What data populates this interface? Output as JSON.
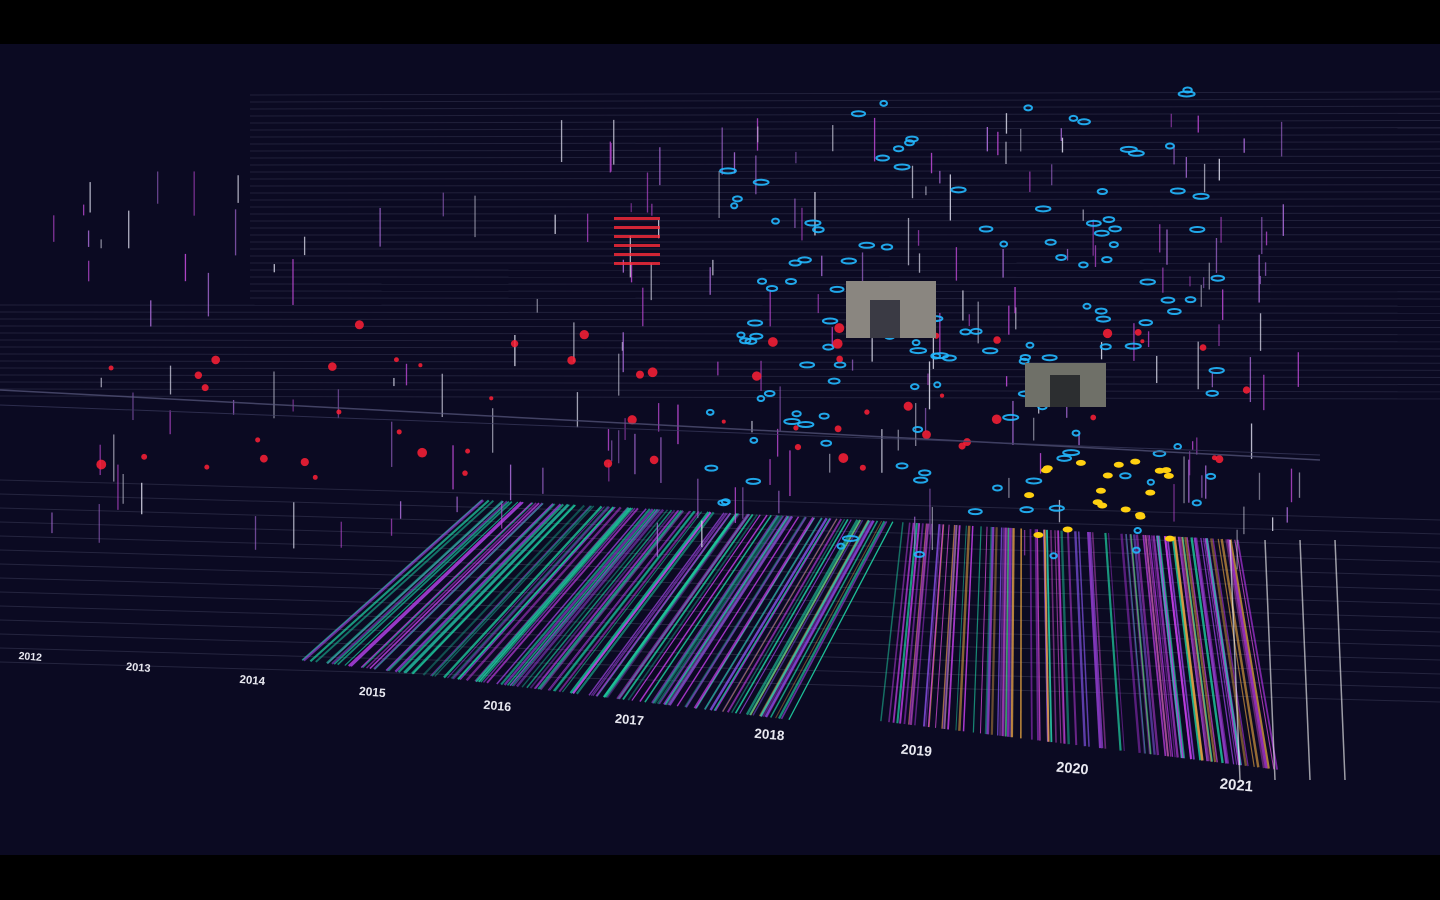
{
  "axis": {
    "labels": [
      "2012",
      "2013",
      "2014",
      "2015",
      "2016",
      "2017",
      "2018",
      "2019",
      "2020",
      "2021"
    ]
  }
}
